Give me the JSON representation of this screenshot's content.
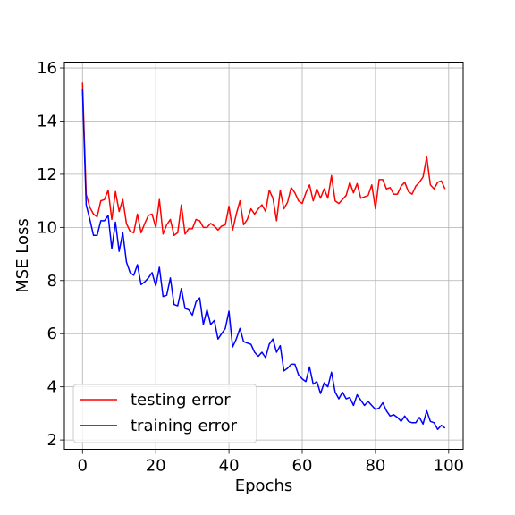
{
  "chart_data": {
    "type": "line",
    "xlabel": "Epochs",
    "ylabel": "MSE Loss",
    "xlim": [
      -4.95,
      103.95
    ],
    "ylim": [
      1.65,
      16.22
    ],
    "xticks": [
      0,
      20,
      40,
      60,
      80,
      100
    ],
    "yticks": [
      2,
      4,
      6,
      8,
      10,
      12,
      14,
      16
    ],
    "grid": true,
    "legend_position": "lower-left",
    "series": [
      {
        "name": "testing error",
        "color": "#ff0000",
        "x": [
          0,
          1,
          2,
          3,
          4,
          5,
          6,
          7,
          8,
          9,
          10,
          11,
          12,
          13,
          14,
          15,
          16,
          17,
          18,
          19,
          20,
          21,
          22,
          23,
          24,
          25,
          26,
          27,
          28,
          29,
          30,
          31,
          32,
          33,
          34,
          35,
          36,
          37,
          38,
          39,
          40,
          41,
          42,
          43,
          44,
          45,
          46,
          47,
          48,
          49,
          50,
          51,
          52,
          53,
          54,
          55,
          56,
          57,
          58,
          59,
          60,
          61,
          62,
          63,
          64,
          65,
          66,
          67,
          68,
          69,
          70,
          71,
          72,
          73,
          74,
          75,
          76,
          77,
          78,
          79,
          80,
          81,
          82,
          83,
          84,
          85,
          86,
          87,
          88,
          89,
          90,
          91,
          92,
          93,
          94,
          95,
          96,
          97,
          98,
          99
        ],
        "values": [
          15.45,
          11.25,
          10.75,
          10.5,
          10.4,
          11.0,
          11.05,
          11.4,
          10.3,
          11.35,
          10.6,
          11.05,
          10.15,
          9.85,
          9.8,
          10.5,
          9.8,
          10.15,
          10.45,
          10.5,
          10.0,
          11.05,
          9.75,
          10.1,
          10.3,
          9.7,
          9.8,
          10.85,
          9.75,
          9.95,
          9.95,
          10.3,
          10.25,
          10.0,
          10.0,
          10.15,
          10.05,
          9.9,
          10.05,
          10.1,
          10.8,
          9.9,
          10.5,
          11.0,
          10.1,
          10.3,
          10.7,
          10.5,
          10.7,
          10.85,
          10.6,
          11.4,
          11.1,
          10.25,
          11.4,
          10.7,
          10.95,
          11.5,
          11.3,
          11.0,
          10.9,
          11.3,
          11.6,
          11.0,
          11.45,
          11.1,
          11.45,
          11.1,
          11.95,
          11.0,
          10.9,
          11.05,
          11.2,
          11.7,
          11.3,
          11.65,
          11.1,
          11.15,
          11.2,
          11.6,
          10.7,
          11.8,
          11.8,
          11.45,
          11.5,
          11.25,
          11.25,
          11.55,
          11.7,
          11.35,
          11.25,
          11.55,
          11.7,
          11.9,
          12.65,
          11.6,
          11.45,
          11.7,
          11.75,
          11.45
        ]
      },
      {
        "name": "training error",
        "color": "#0000ff",
        "x": [
          0,
          1,
          2,
          3,
          4,
          5,
          6,
          7,
          8,
          9,
          10,
          11,
          12,
          13,
          14,
          15,
          16,
          17,
          18,
          19,
          20,
          21,
          22,
          23,
          24,
          25,
          26,
          27,
          28,
          29,
          30,
          31,
          32,
          33,
          34,
          35,
          36,
          37,
          38,
          39,
          40,
          41,
          42,
          43,
          44,
          45,
          46,
          47,
          48,
          49,
          50,
          51,
          52,
          53,
          54,
          55,
          56,
          57,
          58,
          59,
          60,
          61,
          62,
          63,
          64,
          65,
          66,
          67,
          68,
          69,
          70,
          71,
          72,
          73,
          74,
          75,
          76,
          77,
          78,
          79,
          80,
          81,
          82,
          83,
          84,
          85,
          86,
          87,
          88,
          89,
          90,
          91,
          92,
          93,
          94,
          95,
          96,
          97,
          98,
          99
        ],
        "values": [
          15.2,
          10.85,
          10.3,
          9.7,
          9.7,
          10.25,
          10.25,
          10.45,
          9.2,
          10.2,
          9.1,
          9.8,
          8.7,
          8.3,
          8.2,
          8.6,
          7.85,
          7.95,
          8.1,
          8.3,
          7.8,
          8.5,
          7.4,
          7.45,
          8.1,
          7.1,
          7.05,
          7.7,
          6.95,
          6.9,
          6.7,
          7.2,
          7.35,
          6.35,
          6.9,
          6.35,
          6.5,
          5.8,
          6.0,
          6.2,
          6.85,
          5.5,
          5.8,
          6.2,
          5.7,
          5.65,
          5.6,
          5.3,
          5.15,
          5.3,
          5.1,
          5.6,
          5.8,
          5.3,
          5.55,
          4.6,
          4.7,
          4.85,
          4.85,
          4.45,
          4.3,
          4.2,
          4.75,
          4.1,
          4.2,
          3.75,
          4.15,
          4.0,
          4.55,
          3.8,
          3.55,
          3.8,
          3.55,
          3.6,
          3.3,
          3.7,
          3.5,
          3.3,
          3.45,
          3.3,
          3.15,
          3.2,
          3.4,
          3.1,
          2.9,
          2.95,
          2.85,
          2.7,
          2.9,
          2.7,
          2.65,
          2.65,
          2.85,
          2.6,
          3.1,
          2.7,
          2.65,
          2.4,
          2.55,
          2.45
        ]
      }
    ]
  }
}
